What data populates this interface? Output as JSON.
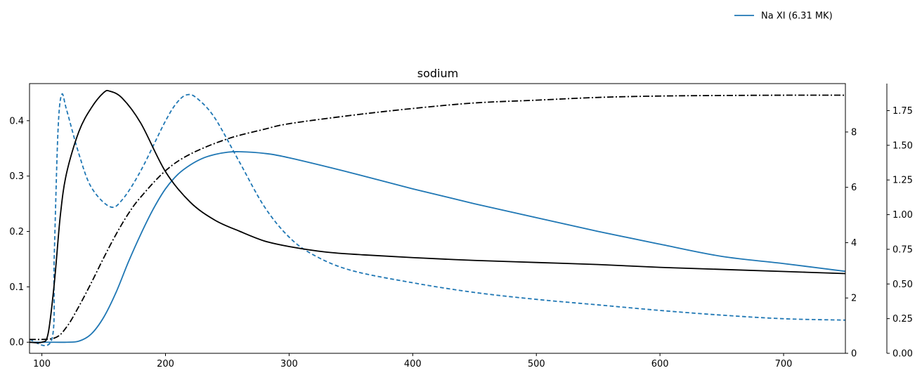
{
  "chart_data": {
    "type": "line",
    "title": "sodium",
    "xlabel": "",
    "ylabel": "",
    "xlim": [
      90,
      750
    ],
    "x_ticks": [
      100,
      200,
      300,
      400,
      500,
      600,
      700
    ],
    "grid": false,
    "legend": {
      "placement": "top-right, above plot",
      "entries": [
        {
          "label": "Na XI (6.31 MK)",
          "color": "#1f77b4",
          "linestyle": "solid"
        }
      ]
    },
    "axes": {
      "left": {
        "ylim": [
          -0.02,
          0.467
        ],
        "ticks": [
          0.0,
          0.1,
          0.2,
          0.3,
          0.4
        ],
        "labels": [
          "0.0",
          "0.1",
          "0.2",
          "0.3",
          "0.4"
        ]
      },
      "right": {
        "ylim": [
          0,
          9.75
        ],
        "ticks": [
          0,
          2,
          4,
          6,
          8
        ],
        "labels": [
          "0",
          "2",
          "4",
          "6",
          "8"
        ]
      },
      "right_outer": {
        "ylim": [
          0,
          1.945
        ],
        "ticks": [
          0.0,
          0.25,
          0.5,
          0.75,
          1.0,
          1.25,
          1.5,
          1.75
        ],
        "labels": [
          "0.00",
          "0.25",
          "0.50",
          "0.75",
          "1.00",
          "1.25",
          "1.50",
          "1.75"
        ]
      }
    },
    "series": [
      {
        "name": "Na XI (6.31 MK)",
        "axis": "left",
        "color": "#1f77b4",
        "linestyle": "solid",
        "x": [
          90,
          110,
          120,
          130,
          140,
          150,
          160,
          170,
          180,
          190,
          200,
          210,
          220,
          230,
          240,
          250,
          260,
          280,
          300,
          350,
          400,
          450,
          500,
          550,
          600,
          650,
          700,
          750
        ],
        "y": [
          0.0,
          0.0,
          0.0,
          0.002,
          0.015,
          0.045,
          0.09,
          0.145,
          0.195,
          0.24,
          0.277,
          0.303,
          0.32,
          0.332,
          0.339,
          0.343,
          0.344,
          0.341,
          0.333,
          0.306,
          0.277,
          0.25,
          0.225,
          0.2,
          0.177,
          0.155,
          0.142,
          0.128
        ]
      },
      {
        "axis": "right",
        "color": "#1f77b4",
        "linestyle": "dashed",
        "x": [
          90,
          108,
          110,
          113,
          116,
          120,
          130,
          140,
          155,
          165,
          180,
          200,
          210,
          218,
          226,
          240,
          260,
          280,
          300,
          320,
          350,
          400,
          450,
          500,
          550,
          600,
          650,
          700,
          750
        ],
        "y": [
          0.5,
          0.5,
          3.5,
          8.0,
          9.35,
          8.8,
          7.2,
          6.0,
          5.3,
          5.55,
          6.6,
          8.4,
          9.1,
          9.35,
          9.2,
          8.5,
          6.9,
          5.3,
          4.2,
          3.55,
          3.0,
          2.55,
          2.2,
          1.95,
          1.75,
          1.55,
          1.38,
          1.25,
          1.2
        ]
      },
      {
        "axis": "right_outer",
        "color": "#000000",
        "linestyle": "solid",
        "x": [
          90,
          100,
          105,
          110,
          115,
          120,
          130,
          140,
          150,
          155,
          165,
          180,
          200,
          220,
          240,
          260,
          280,
          300,
          330,
          360,
          400,
          450,
          500,
          550,
          600,
          650,
          700,
          750
        ],
        "y": [
          0.08,
          0.08,
          0.14,
          0.5,
          1.0,
          1.3,
          1.6,
          1.77,
          1.88,
          1.89,
          1.84,
          1.66,
          1.31,
          1.09,
          0.96,
          0.88,
          0.81,
          0.77,
          0.73,
          0.71,
          0.69,
          0.67,
          0.655,
          0.64,
          0.62,
          0.605,
          0.59,
          0.575
        ]
      },
      {
        "axis": "right",
        "color": "#000000",
        "linestyle": "dashdot",
        "x": [
          90,
          110,
          120,
          130,
          140,
          150,
          160,
          170,
          180,
          200,
          220,
          250,
          280,
          300,
          350,
          400,
          450,
          500,
          550,
          600,
          650,
          700,
          750
        ],
        "y": [
          0.5,
          0.55,
          0.95,
          1.7,
          2.55,
          3.45,
          4.3,
          5.05,
          5.65,
          6.6,
          7.2,
          7.75,
          8.1,
          8.3,
          8.6,
          8.85,
          9.05,
          9.15,
          9.25,
          9.3,
          9.32,
          9.33,
          9.33
        ]
      }
    ]
  }
}
